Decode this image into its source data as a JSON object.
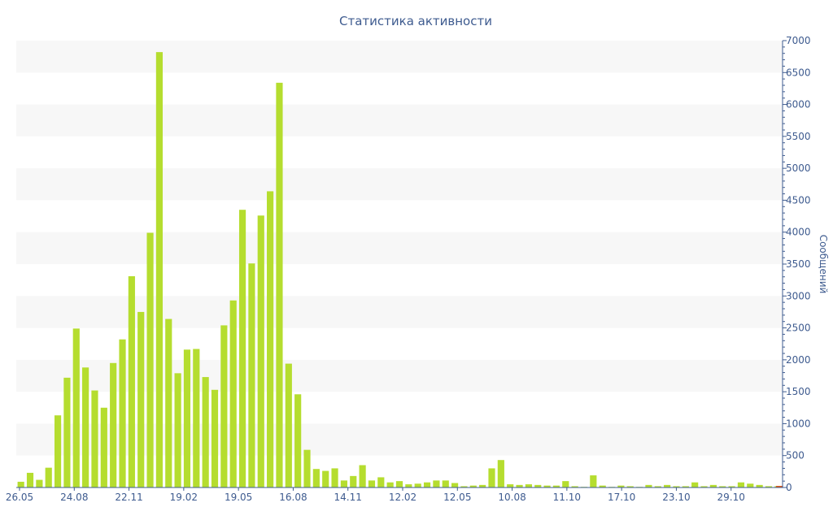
{
  "chart_data": {
    "type": "bar",
    "title": "Статистика активности",
    "xlabel": "",
    "ylabel": "Сообщений",
    "ylim": [
      0,
      7000
    ],
    "yticks": [
      0,
      500,
      1000,
      1500,
      2000,
      2500,
      3000,
      3500,
      4000,
      4500,
      5000,
      5500,
      6000,
      6500,
      7000
    ],
    "y_axis_side": "right",
    "grid": "alternating horizontal bands",
    "xtick_labels": [
      "26.05",
      "24.08",
      "22.11",
      "19.02",
      "19.05",
      "16.08",
      "14.11",
      "12.02",
      "12.05",
      "10.08",
      "11.10",
      "17.10",
      "23.10",
      "29.10"
    ],
    "values": [
      90,
      230,
      120,
      310,
      1130,
      1720,
      2490,
      1880,
      1520,
      1250,
      1950,
      2320,
      3310,
      2750,
      3990,
      6820,
      2640,
      1790,
      2160,
      2170,
      1730,
      1530,
      2540,
      2930,
      4350,
      3510,
      4260,
      4640,
      6340,
      1940,
      1460,
      590,
      290,
      260,
      300,
      110,
      180,
      350,
      110,
      160,
      80,
      100,
      50,
      60,
      80,
      110,
      110,
      70,
      20,
      30,
      40,
      300,
      430,
      50,
      40,
      50,
      40,
      30,
      30,
      100,
      20,
      10,
      190,
      30,
      10,
      30,
      20,
      10,
      40,
      20,
      40,
      20,
      20,
      80,
      20,
      40,
      20,
      20,
      80,
      60,
      40,
      20,
      20
    ],
    "colors": {
      "bar": "#b5dd2f",
      "axis": "#3e5b8f",
      "band": "#f7f7f7",
      "zero_marker": "#e05a1a"
    }
  }
}
